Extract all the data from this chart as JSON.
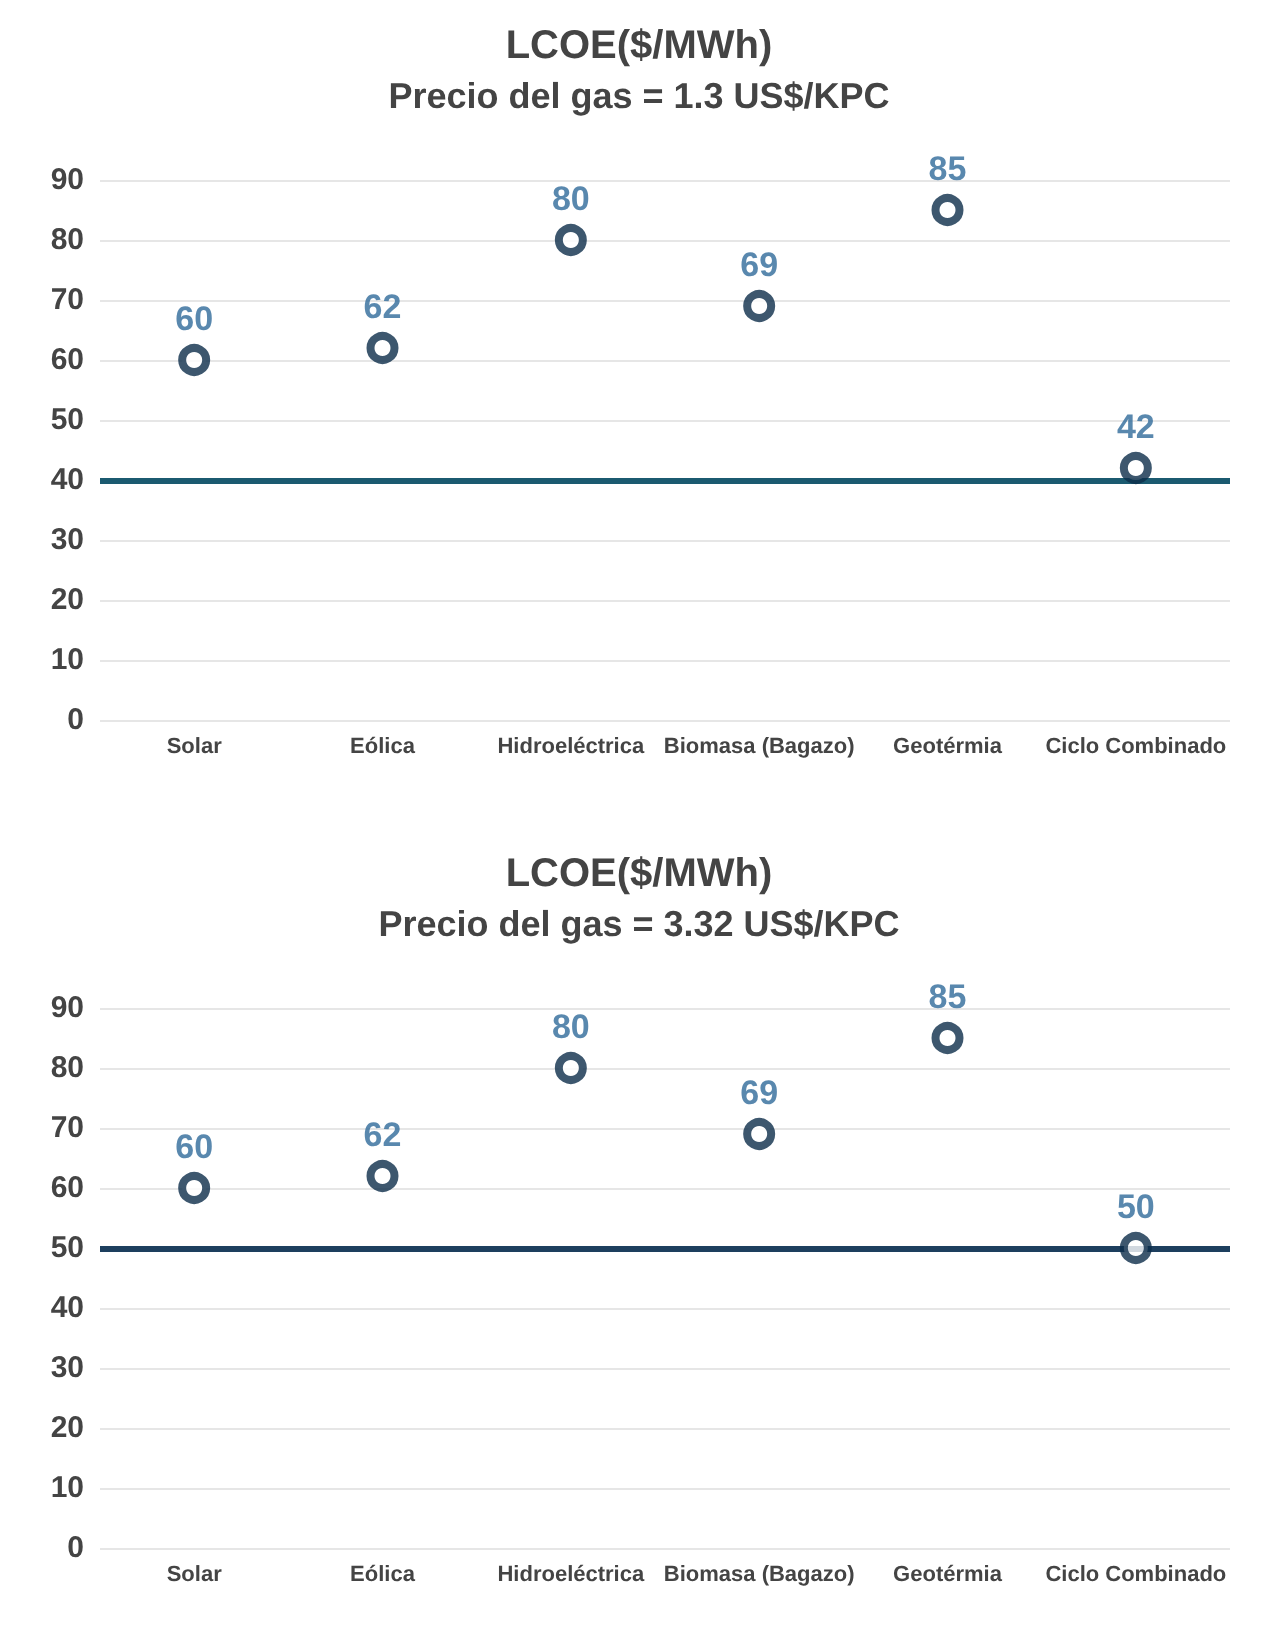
{
  "chart_data": [
    {
      "type": "scatter",
      "title": "LCOE($/MWh)",
      "subtitle": "Precio del gas = 1.3 US$/KPC",
      "categories": [
        "Solar",
        "Eólica",
        "Hidroeléctrica",
        "Biomasa (Bagazo)",
        "Geotérmia",
        "Ciclo Combinado"
      ],
      "series": [
        {
          "color": "#0d2d4a",
          "values": [
            60,
            62,
            80,
            69,
            85,
            42
          ]
        }
      ],
      "ylim": [
        0,
        90
      ],
      "yticks": [
        0,
        10,
        20,
        30,
        40,
        50,
        60,
        70,
        80,
        90
      ],
      "grid": "y",
      "marker": "circle",
      "data_labels": true,
      "ref_lines": [
        {
          "axis": "y",
          "value": 40,
          "color": "#1b5a70"
        }
      ]
    },
    {
      "type": "scatter",
      "title": "LCOE($/MWh)",
      "subtitle": "Precio del gas = 3.32 US$/KPC",
      "categories": [
        "Solar",
        "Eólica",
        "Hidroeléctrica",
        "Biomasa (Bagazo)",
        "Geotérmia",
        "Ciclo Combinado"
      ],
      "series": [
        {
          "color": "#0d2d4a",
          "values": [
            60,
            62,
            80,
            69,
            85,
            50
          ]
        }
      ],
      "ylim": [
        0,
        90
      ],
      "yticks": [
        0,
        10,
        20,
        30,
        40,
        50,
        60,
        70,
        80,
        90
      ],
      "grid": "y",
      "marker": "circle",
      "data_labels": true,
      "ref_lines": [
        {
          "axis": "y",
          "value": 50,
          "color": "#1d3f5e"
        }
      ]
    }
  ]
}
